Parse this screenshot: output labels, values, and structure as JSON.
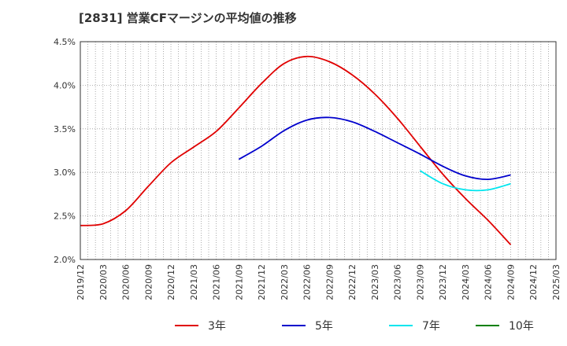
{
  "chart_data": {
    "type": "line",
    "title": "[2831]  営業CFマージンの平均値の推移",
    "xlabel": "",
    "ylabel": "",
    "x": [
      "2019/12",
      "2020/03",
      "2020/06",
      "2020/09",
      "2020/12",
      "2021/03",
      "2021/06",
      "2021/09",
      "2021/12",
      "2022/03",
      "2022/06",
      "2022/09",
      "2022/12",
      "2023/03",
      "2023/06",
      "2023/09",
      "2023/12",
      "2024/03",
      "2024/06",
      "2024/09",
      "2024/12",
      "2025/03"
    ],
    "ylim": [
      2.0,
      4.5
    ],
    "yticks": [
      2.0,
      2.5,
      3.0,
      3.5,
      4.0,
      4.5
    ],
    "ytick_labels": [
      "2.0%",
      "2.5%",
      "3.0%",
      "3.5%",
      "4.0%",
      "4.5%"
    ],
    "grid": true,
    "legend_position": "bottom",
    "series": [
      {
        "name": "3年",
        "color": "#e00000",
        "values": [
          2.39,
          2.41,
          2.56,
          2.84,
          3.11,
          3.29,
          3.47,
          3.74,
          4.02,
          4.25,
          4.33,
          4.27,
          4.12,
          3.9,
          3.62,
          3.3,
          2.98,
          2.7,
          2.45,
          2.17,
          null,
          null
        ]
      },
      {
        "name": "5年",
        "color": "#0000cc",
        "values": [
          null,
          null,
          null,
          null,
          null,
          null,
          null,
          3.15,
          3.3,
          3.48,
          3.6,
          3.63,
          3.58,
          3.47,
          3.34,
          3.21,
          3.07,
          2.96,
          2.92,
          2.97,
          null,
          null
        ]
      },
      {
        "name": "7年",
        "color": "#00e5ee",
        "values": [
          null,
          null,
          null,
          null,
          null,
          null,
          null,
          null,
          null,
          null,
          null,
          null,
          null,
          null,
          null,
          3.02,
          2.87,
          2.8,
          2.8,
          2.87,
          null,
          null
        ]
      },
      {
        "name": "10年",
        "color": "#008000",
        "values": [
          null,
          null,
          null,
          null,
          null,
          null,
          null,
          null,
          null,
          null,
          null,
          null,
          null,
          null,
          null,
          null,
          null,
          null,
          null,
          null,
          null,
          null
        ]
      }
    ]
  }
}
